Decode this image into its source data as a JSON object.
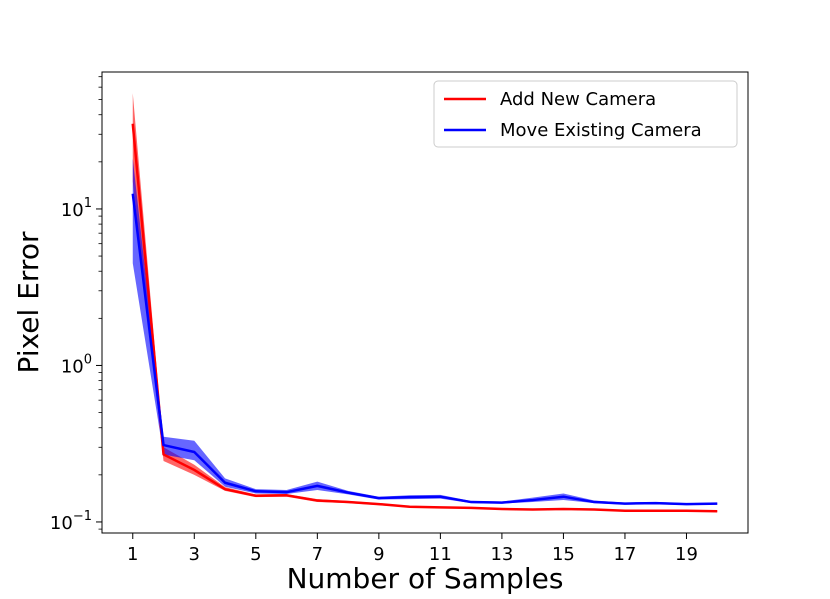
{
  "chart_data": {
    "type": "line",
    "title": "",
    "xlabel": "Number of Samples",
    "ylabel": "Pixel Error",
    "x": [
      1,
      2,
      3,
      4,
      5,
      6,
      7,
      8,
      9,
      10,
      11,
      12,
      13,
      14,
      15,
      16,
      17,
      18,
      19,
      20
    ],
    "xlim": [
      0,
      21
    ],
    "xticks": [
      1,
      3,
      5,
      7,
      9,
      11,
      13,
      15,
      17,
      19
    ],
    "xtick_labels": [
      "1",
      "3",
      "5",
      "7",
      "9",
      "11",
      "13",
      "15",
      "17",
      "19"
    ],
    "yscale": "log",
    "ylim": [
      0.085,
      75
    ],
    "yticks": [
      0.1,
      1,
      10
    ],
    "ytick_labels": [
      {
        "base": "10",
        "exp": "−1"
      },
      {
        "base": "10",
        "exp": "0"
      },
      {
        "base": "10",
        "exp": "1"
      }
    ],
    "grid": false,
    "legend_position": "upper right",
    "series": [
      {
        "name": "Add New Camera",
        "color": "#ff0000",
        "values": [
          35.0,
          0.27,
          0.215,
          0.162,
          0.147,
          0.148,
          0.137,
          0.134,
          0.13,
          0.125,
          0.124,
          0.123,
          0.121,
          0.12,
          0.121,
          0.12,
          0.118,
          0.118,
          0.118,
          0.117
        ],
        "lower": [
          15.0,
          0.245,
          0.2,
          0.158,
          0.144,
          0.145,
          0.134,
          0.132,
          0.128,
          0.124,
          0.123,
          0.122,
          0.12,
          0.119,
          0.12,
          0.119,
          0.117,
          0.117,
          0.117,
          0.116
        ],
        "upper": [
          55.0,
          0.3,
          0.232,
          0.167,
          0.15,
          0.151,
          0.14,
          0.136,
          0.132,
          0.126,
          0.125,
          0.124,
          0.122,
          0.121,
          0.122,
          0.121,
          0.119,
          0.119,
          0.119,
          0.118
        ]
      },
      {
        "name": "Move Existing Camera",
        "color": "#0000ff",
        "values": [
          12.5,
          0.31,
          0.28,
          0.178,
          0.157,
          0.155,
          0.17,
          0.154,
          0.142,
          0.144,
          0.145,
          0.134,
          0.133,
          0.138,
          0.145,
          0.134,
          0.131,
          0.132,
          0.13,
          0.131
        ],
        "lower": [
          4.5,
          0.27,
          0.248,
          0.168,
          0.152,
          0.151,
          0.16,
          0.15,
          0.139,
          0.14,
          0.141,
          0.132,
          0.131,
          0.134,
          0.138,
          0.132,
          0.129,
          0.13,
          0.128,
          0.129
        ],
        "upper": [
          21.0,
          0.35,
          0.33,
          0.19,
          0.162,
          0.16,
          0.181,
          0.158,
          0.145,
          0.148,
          0.149,
          0.136,
          0.135,
          0.143,
          0.152,
          0.137,
          0.133,
          0.134,
          0.132,
          0.133
        ]
      }
    ]
  }
}
